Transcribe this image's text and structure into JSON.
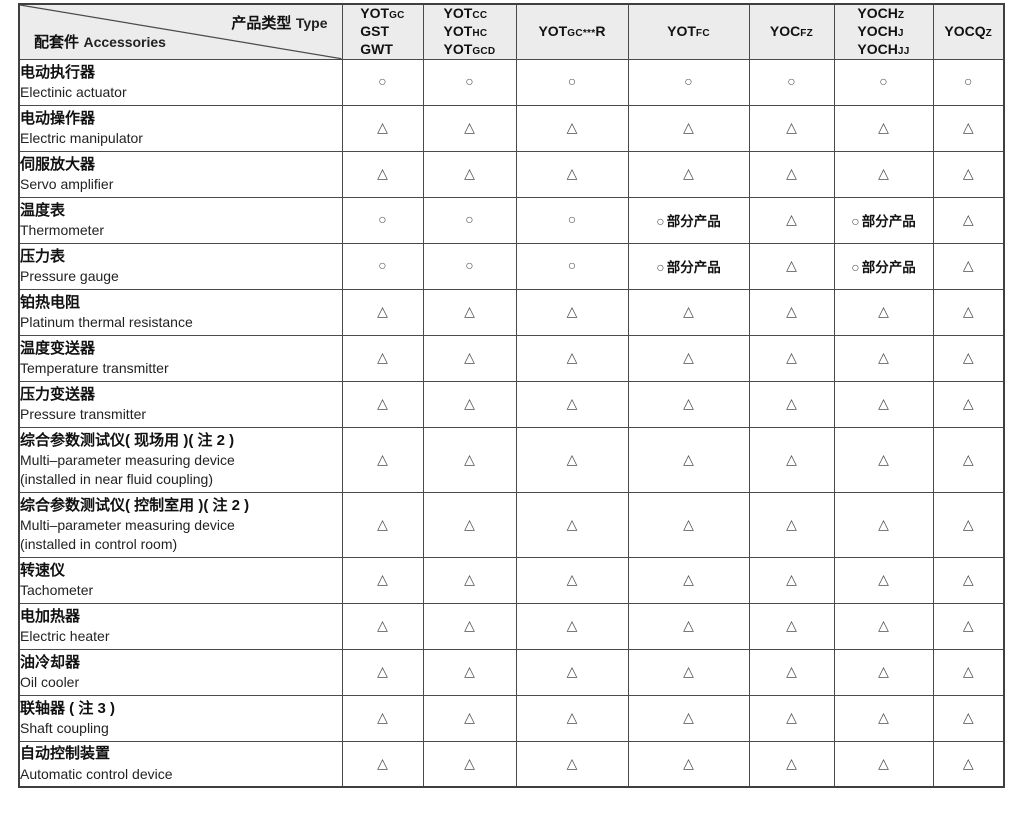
{
  "header": {
    "corner": {
      "top_right_zh": "产品类型",
      "top_right_en": "Type",
      "bottom_left_zh": "配套件",
      "bottom_left_en": "Accessories"
    },
    "columns": [
      {
        "id": "yotgc-gst-gwt",
        "lines": [
          [
            {
              "t": "YOT",
              "s": "b"
            },
            {
              "t": "GC",
              "s": "s"
            }
          ],
          [
            {
              "t": "GST",
              "s": "b"
            }
          ],
          [
            {
              "t": "GWT",
              "s": "b"
            }
          ]
        ]
      },
      {
        "id": "yotcc-yothc-yotgcd",
        "lines": [
          [
            {
              "t": "YOT",
              "s": "b"
            },
            {
              "t": "CC",
              "s": "s"
            }
          ],
          [
            {
              "t": "YOT",
              "s": "b"
            },
            {
              "t": "HC",
              "s": "s"
            }
          ],
          [
            {
              "t": "YOT",
              "s": "b"
            },
            {
              "t": "GCD",
              "s": "s"
            }
          ]
        ]
      },
      {
        "id": "yotgc-r",
        "lines": [
          [
            {
              "t": "YOT",
              "s": "b"
            },
            {
              "t": "GC",
              "s": "s"
            },
            {
              "t": "***",
              "s": "s"
            },
            {
              "t": "R",
              "s": "b"
            }
          ]
        ]
      },
      {
        "id": "yotfc",
        "lines": [
          [
            {
              "t": "YOT",
              "s": "b"
            },
            {
              "t": "FC",
              "s": "s"
            }
          ]
        ]
      },
      {
        "id": "yocfz",
        "lines": [
          [
            {
              "t": "YOC",
              "s": "b"
            },
            {
              "t": "FZ",
              "s": "s"
            }
          ]
        ]
      },
      {
        "id": "yochz-yochj-yochjj",
        "lines": [
          [
            {
              "t": "YOCH",
              "s": "b"
            },
            {
              "t": "Z",
              "s": "s"
            }
          ],
          [
            {
              "t": "YOCH",
              "s": "b"
            },
            {
              "t": "J",
              "s": "s"
            }
          ],
          [
            {
              "t": "YOCH",
              "s": "b"
            },
            {
              "t": "JJ",
              "s": "s"
            }
          ]
        ]
      },
      {
        "id": "yocqz",
        "lines": [
          [
            {
              "t": "YOCQ",
              "s": "b"
            },
            {
              "t": "Z",
              "s": "s"
            }
          ]
        ]
      }
    ]
  },
  "symbols": {
    "circle": "○",
    "triangle": "△",
    "partial_zh": "部分产品"
  },
  "rows": [
    {
      "zh": "电动执行器",
      "en": [
        "Electinic actuator"
      ],
      "cells": [
        "c",
        "c",
        "c",
        "c",
        "c",
        "c",
        "c"
      ]
    },
    {
      "zh": "电动操作器",
      "en": [
        "Electric manipulator"
      ],
      "cells": [
        "t",
        "t",
        "t",
        "t",
        "t",
        "t",
        "t"
      ]
    },
    {
      "zh": "伺服放大器",
      "en": [
        "Servo amplifier"
      ],
      "cells": [
        "t",
        "t",
        "t",
        "t",
        "t",
        "t",
        "t"
      ]
    },
    {
      "zh": "温度表",
      "en": [
        "Thermometer"
      ],
      "cells": [
        "c",
        "c",
        "c",
        "cp",
        "t",
        "cp",
        "t"
      ]
    },
    {
      "zh": "压力表",
      "en": [
        "Pressure gauge"
      ],
      "cells": [
        "c",
        "c",
        "c",
        "cp",
        "t",
        "cp",
        "t"
      ]
    },
    {
      "zh": "铂热电阻",
      "en": [
        "Platinum thermal resistance"
      ],
      "cells": [
        "t",
        "t",
        "t",
        "t",
        "t",
        "t",
        "t"
      ]
    },
    {
      "zh": "温度变送器",
      "en": [
        "Temperature transmitter"
      ],
      "cells": [
        "t",
        "t",
        "t",
        "t",
        "t",
        "t",
        "t"
      ]
    },
    {
      "zh": "压力变送器",
      "en": [
        "Pressure transmitter"
      ],
      "cells": [
        "t",
        "t",
        "t",
        "t",
        "t",
        "t",
        "t"
      ]
    },
    {
      "zh": "综合参数测试仪( 现场用 )( 注 2 )",
      "en": [
        "Multi–parameter measuring device",
        "(installed in near fluid coupling)"
      ],
      "cells": [
        "t",
        "t",
        "t",
        "t",
        "t",
        "t",
        "t"
      ]
    },
    {
      "zh": "综合参数测试仪( 控制室用 )( 注 2 )",
      "en": [
        "Multi–parameter measuring device",
        "(installed in control room)"
      ],
      "cells": [
        "t",
        "t",
        "t",
        "t",
        "t",
        "t",
        "t"
      ]
    },
    {
      "zh": "转速仪",
      "en": [
        "Tachometer"
      ],
      "cells": [
        "t",
        "t",
        "t",
        "t",
        "t",
        "t",
        "t"
      ]
    },
    {
      "zh": "电加热器",
      "en": [
        "Electric heater"
      ],
      "cells": [
        "t",
        "t",
        "t",
        "t",
        "t",
        "t",
        "t"
      ]
    },
    {
      "zh": "油冷却器",
      "en": [
        "Oil cooler"
      ],
      "cells": [
        "t",
        "t",
        "t",
        "t",
        "t",
        "t",
        "t"
      ]
    },
    {
      "zh": "联轴器 ( 注 3 )",
      "en": [
        "Shaft coupling"
      ],
      "cells": [
        "t",
        "t",
        "t",
        "t",
        "t",
        "t",
        "t"
      ]
    },
    {
      "zh": "自动控制装置",
      "en": [
        "Automatic control device"
      ],
      "cells": [
        "t",
        "t",
        "t",
        "t",
        "t",
        "t",
        "t"
      ]
    }
  ]
}
